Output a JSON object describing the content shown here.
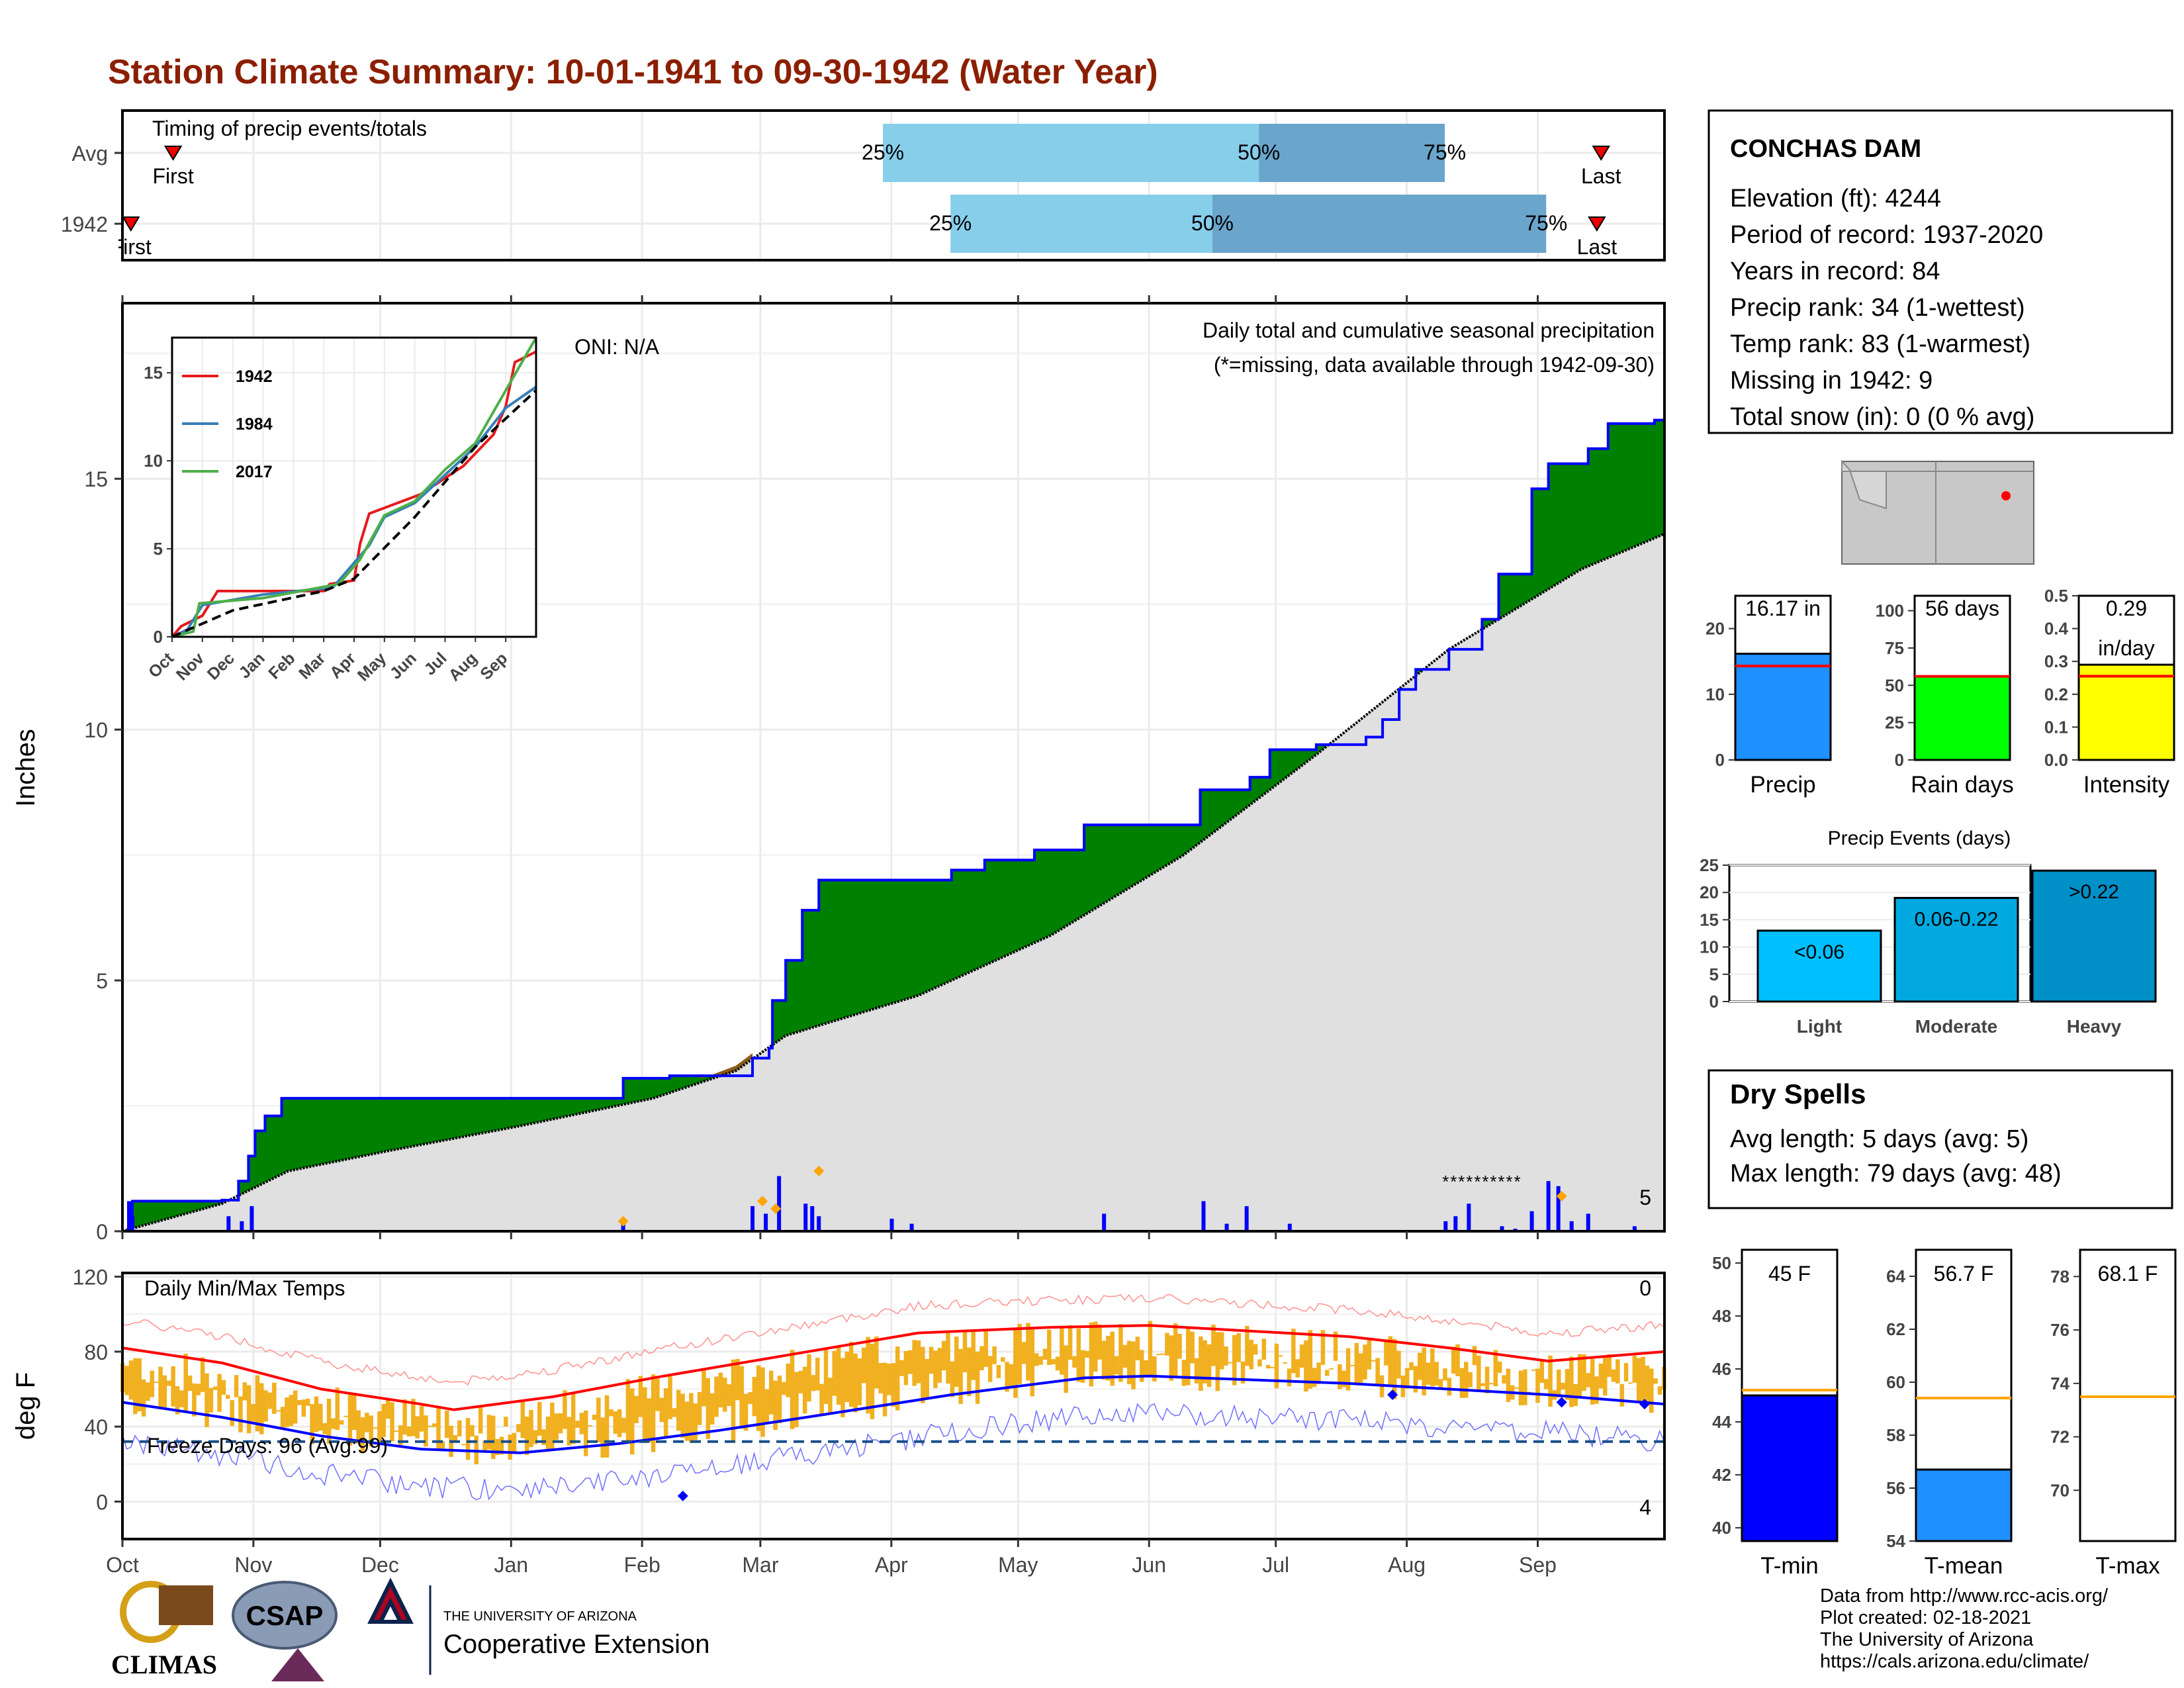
{
  "title": "Station Climate Summary: 10-01-1941 to 09-30-1942 (Water Year)",
  "colors": {
    "title": "#8b1f00",
    "precip_bar": "#0000ff",
    "above_avg_fill": "#008000",
    "below_avg_fill": "#8b5a14",
    "avg_fill": "#e0e0e0",
    "timing_light": "#87ceeb",
    "timing_dark": "#6aa5cc",
    "tmax_line": "#ff0000",
    "tmin_line": "#0000ff",
    "temp_bars": "#f0b020",
    "freeze_line": "#1a4f8a",
    "dry_spells": "#a52a2a"
  },
  "timing": {
    "title": "Timing of precip events/totals",
    "rows": [
      {
        "label": "Avg",
        "first": "First",
        "last": "Last",
        "p25": "25%",
        "p50": "50%",
        "p75": "75%",
        "first_day": 12,
        "last_day": 350,
        "p25_day": 180,
        "p50_day": 269,
        "p75_day": 313
      },
      {
        "label": "1942",
        "first": "First",
        "last": "Last",
        "p25": "25%",
        "p50": "50%",
        "p75": "75%",
        "first_day": 2,
        "last_day": 349,
        "p25_day": 196,
        "p50_day": 258,
        "p75_day": 337
      }
    ]
  },
  "station": {
    "name": "CONCHAS DAM",
    "lines": [
      "Elevation (ft): 4244",
      "Period of record: 1937-2020",
      "Years in record: 84",
      "Precip rank: 34 (1-wettest)",
      "Temp rank: 83 (1-warmest)",
      "Missing in 1942: 9",
      "Total snow (in): 0 (0 % avg)"
    ]
  },
  "main_chart": {
    "ylabel": "Inches",
    "oni": "ONI: N/A",
    "subtitle": "Daily total and cumulative seasonal precipitation",
    "missing_note": "(*=missing, data available through 1942-09-30)",
    "count_label": "5",
    "y_ticks": [
      "0",
      "5",
      "10",
      "15"
    ],
    "months": [
      "Oct",
      "Nov",
      "Dec",
      "Jan",
      "Feb",
      "Mar",
      "Apr",
      "May",
      "Jun",
      "Jul",
      "Aug",
      "Sep"
    ]
  },
  "inset": {
    "legend": [
      "1942",
      "1984",
      "2017"
    ],
    "y_ticks": [
      "0",
      "5",
      "10",
      "15"
    ],
    "months": [
      "Oct",
      "Nov",
      "Dec",
      "Jan",
      "Feb",
      "Mar",
      "Apr",
      "May",
      "Jun",
      "Jul",
      "Aug",
      "Sep"
    ]
  },
  "temp_chart": {
    "ylabel": "deg F",
    "title": "Daily Min/Max Temps",
    "freeze": "Freeze Days: 96 (Avg:99)",
    "top_count": "0",
    "bottom_count": "4",
    "y_ticks": [
      "0",
      "40",
      "80",
      "120"
    ]
  },
  "summary_bars": [
    {
      "label": "Precip",
      "value_text": "16.17 in",
      "value": 16.17,
      "avg": 14.3,
      "ymax": 25,
      "ticks": [
        "0",
        "10",
        "20"
      ],
      "color": "#1e90ff"
    },
    {
      "label": "Rain days",
      "value_text": "56 days",
      "value": 56,
      "avg": 56,
      "ymax": 110,
      "ticks": [
        "0",
        "25",
        "50",
        "75",
        "100"
      ],
      "color": "#00ff00"
    },
    {
      "label": "Intensity",
      "value_text": "0.29",
      "value_text2": "in/day",
      "value": 0.29,
      "avg": 0.255,
      "ymax": 0.5,
      "ticks": [
        "0.0",
        "0.1",
        "0.2",
        "0.3",
        "0.4",
        "0.5"
      ],
      "color": "#ffff00"
    }
  ],
  "precip_events": {
    "title": "Precip Events (days)",
    "ticks": [
      "0",
      "5",
      "10",
      "15",
      "20",
      "25"
    ],
    "bars": [
      {
        "label": "Light",
        "range": "<0.06",
        "value": 13,
        "color": "#00bfff"
      },
      {
        "label": "Moderate",
        "range": "0.06-0.22",
        "value": 19,
        "color": "#00a8e0"
      },
      {
        "label": "Heavy",
        "range": ">0.22",
        "value": 24,
        "color": "#0090c8"
      }
    ]
  },
  "dry_spells": {
    "title": "Dry Spells",
    "avg": "Avg length: 5 days (avg: 5)",
    "max": "Max length: 79 days (avg: 48)"
  },
  "temp_bars": [
    {
      "label": "T-min",
      "value_text": "45 F",
      "value": 45.0,
      "avg": 45.2,
      "ymin": 39.5,
      "ymax": 50.5,
      "ticks": [
        "40",
        "42",
        "44",
        "46",
        "48",
        "50"
      ],
      "color": "#0000ff"
    },
    {
      "label": "T-mean",
      "value_text": "56.7 F",
      "value": 56.7,
      "avg": 59.4,
      "ymin": 54,
      "ymax": 65,
      "ticks": [
        "54",
        "56",
        "58",
        "60",
        "62",
        "64"
      ],
      "color": "#1e90ff"
    },
    {
      "label": "T-max",
      "value_text": "68.1 F",
      "value": 68.1,
      "avg": 73.5,
      "ymin": 68.1,
      "ymax": 79,
      "ticks": [
        "70",
        "72",
        "74",
        "76",
        "78"
      ],
      "color": "#0000ff"
    }
  ],
  "credits": [
    "Data from http://www.rcc-acis.org/",
    "Plot created: 02-18-2021",
    "The University of Arizona",
    "https://cals.arizona.edu/climate/"
  ],
  "logos": {
    "climas": "CLIMAS",
    "csap": "CSAP",
    "ua_small": "THE UNIVERSITY OF ARIZONA",
    "ua_big": "Cooperative Extension"
  },
  "chart_data": [
    {
      "type": "area",
      "title": "Daily total and cumulative seasonal precipitation",
      "ylabel": "Inches",
      "ylim": [
        0,
        18.5
      ],
      "x_unit": "day of water year (0 = Oct 1)",
      "cumulative_1942": [
        [
          0,
          0
        ],
        [
          2,
          0.3
        ],
        [
          3,
          0.6
        ],
        [
          30,
          0.62
        ],
        [
          35,
          1.0
        ],
        [
          38,
          1.5
        ],
        [
          40,
          2.0
        ],
        [
          43,
          2.3
        ],
        [
          48,
          2.65
        ],
        [
          150,
          2.65
        ],
        [
          151,
          3.05
        ],
        [
          165,
          3.1
        ],
        [
          183,
          3.1
        ],
        [
          190,
          3.45
        ],
        [
          195,
          3.65
        ],
        [
          196,
          4.6
        ],
        [
          200,
          5.4
        ],
        [
          205,
          6.4
        ],
        [
          210,
          7.0
        ],
        [
          250,
          7.2
        ],
        [
          260,
          7.4
        ],
        [
          275,
          7.6
        ],
        [
          290,
          8.1
        ],
        [
          320,
          8.1
        ],
        [
          325,
          8.8
        ],
        [
          340,
          9.05
        ],
        [
          346,
          9.6
        ],
        [
          360,
          9.7
        ],
        [
          375,
          9.85
        ],
        [
          380,
          10.2
        ],
        [
          385,
          10.8
        ],
        [
          390,
          11.2
        ],
        [
          400,
          11.6
        ],
        [
          410,
          12.2
        ],
        [
          415,
          13.1
        ],
        [
          425,
          14.8
        ],
        [
          430,
          15.3
        ],
        [
          442,
          15.6
        ],
        [
          448,
          16.1
        ],
        [
          462,
          16.17
        ],
        [
          465,
          16.17
        ]
      ],
      "cumulative_avg": [
        [
          0,
          0
        ],
        [
          30,
          0.55
        ],
        [
          50,
          1.2
        ],
        [
          80,
          1.6
        ],
        [
          120,
          2.1
        ],
        [
          160,
          2.65
        ],
        [
          185,
          3.2
        ],
        [
          200,
          3.9
        ],
        [
          240,
          4.7
        ],
        [
          280,
          5.9
        ],
        [
          320,
          7.5
        ],
        [
          360,
          9.5
        ],
        [
          400,
          11.6
        ],
        [
          440,
          13.2
        ],
        [
          465,
          13.9
        ]
      ],
      "daily_bars": [
        [
          2,
          0.6
        ],
        [
          3,
          0.3
        ],
        [
          32,
          0.3
        ],
        [
          36,
          0.2
        ],
        [
          39,
          0.5
        ],
        [
          151,
          0.15
        ],
        [
          190,
          0.5
        ],
        [
          194,
          0.35
        ],
        [
          198,
          1.1
        ],
        [
          206,
          0.55
        ],
        [
          208,
          0.5
        ],
        [
          210,
          0.3
        ],
        [
          232,
          0.25
        ],
        [
          238,
          0.15
        ],
        [
          296,
          0.35
        ],
        [
          326,
          0.6
        ],
        [
          333,
          0.15
        ],
        [
          339,
          0.5
        ],
        [
          352,
          0.15
        ],
        [
          399,
          0.2
        ],
        [
          402,
          0.3
        ],
        [
          406,
          0.55
        ],
        [
          416,
          0.1
        ],
        [
          420,
          0.05
        ],
        [
          425,
          0.4
        ],
        [
          430,
          1.0
        ],
        [
          433,
          0.9
        ],
        [
          437,
          0.2
        ],
        [
          442,
          0.35
        ],
        [
          456,
          0.1
        ]
      ],
      "missing_days": [
        399,
        421
      ],
      "months": [
        "Oct",
        "Nov",
        "Dec",
        "Jan",
        "Feb",
        "Mar",
        "Apr",
        "May",
        "Jun",
        "Jul",
        "Aug",
        "Sep"
      ]
    },
    {
      "type": "line",
      "title": "",
      "legend": [
        "1942",
        "1984",
        "2017"
      ],
      "ylim": [
        0,
        17
      ],
      "series": [
        {
          "name": "1942",
          "color": "#e41a1c",
          "points": [
            [
              0,
              0
            ],
            [
              0.3,
              0.6
            ],
            [
              1,
              1.2
            ],
            [
              1.5,
              2.6
            ],
            [
              5,
              2.6
            ],
            [
              5.2,
              3.0
            ],
            [
              6,
              3.2
            ],
            [
              6.2,
              5.3
            ],
            [
              6.5,
              7.0
            ],
            [
              8.2,
              8.1
            ],
            [
              9.6,
              9.7
            ],
            [
              10.6,
              11.5
            ],
            [
              11,
              13.1
            ],
            [
              11.3,
              15.6
            ],
            [
              12,
              16.2
            ]
          ]
        },
        {
          "name": "1984",
          "color": "#377eb8",
          "points": [
            [
              0,
              0
            ],
            [
              0.5,
              0.4
            ],
            [
              1,
              1.8
            ],
            [
              3,
              2.4
            ],
            [
              5.3,
              2.8
            ],
            [
              6.5,
              5.2
            ],
            [
              7,
              6.8
            ],
            [
              8,
              7.6
            ],
            [
              9,
              9.2
            ],
            [
              10,
              10.8
            ],
            [
              11,
              13.0
            ],
            [
              12,
              14.2
            ]
          ]
        },
        {
          "name": "2017",
          "color": "#4daf4a",
          "points": [
            [
              0,
              0
            ],
            [
              0.7,
              0.3
            ],
            [
              0.9,
              1.9
            ],
            [
              3,
              2.2
            ],
            [
              5.5,
              3.0
            ],
            [
              6.2,
              4.4
            ],
            [
              7,
              6.9
            ],
            [
              8,
              7.7
            ],
            [
              9,
              9.5
            ],
            [
              10,
              11.0
            ],
            [
              11,
              14.0
            ],
            [
              12,
              17.0
            ]
          ]
        },
        {
          "name": "",
          "color": "#000000",
          "points": [
            [
              0,
              0
            ],
            [
              2,
              1.5
            ],
            [
              5,
              2.6
            ],
            [
              6,
              3.3
            ],
            [
              8,
              6.8
            ],
            [
              10,
              10.8
            ],
            [
              12,
              14.0
            ]
          ]
        }
      ]
    },
    {
      "type": "line",
      "title": "Daily Min/Max Temps",
      "ylabel": "deg F",
      "ylim": [
        -20,
        122
      ],
      "series": [
        {
          "name": "",
          "color": "#ff0000",
          "points": [
            [
              0,
              82
            ],
            [
              30,
              74
            ],
            [
              60,
              60
            ],
            [
              90,
              52
            ],
            [
              100,
              49
            ],
            [
              130,
              56
            ],
            [
              160,
              66
            ],
            [
              200,
              78
            ],
            [
              240,
              90
            ],
            [
              280,
              93
            ],
            [
              310,
              94
            ],
            [
              340,
              91
            ],
            [
              370,
              88
            ],
            [
              400,
              82
            ],
            [
              430,
              75
            ],
            [
              465,
              80
            ]
          ]
        },
        {
          "name": "",
          "color": "#0000ff",
          "points": [
            [
              0,
              53
            ],
            [
              30,
              45
            ],
            [
              60,
              35
            ],
            [
              90,
              28
            ],
            [
              120,
              26
            ],
            [
              150,
              31
            ],
            [
              180,
              38
            ],
            [
              210,
              46
            ],
            [
              250,
              57
            ],
            [
              290,
              66
            ],
            [
              310,
              67
            ],
            [
              340,
              65
            ],
            [
              370,
              63
            ],
            [
              400,
              60
            ],
            [
              430,
              57
            ],
            [
              465,
              52
            ]
          ]
        }
      ],
      "freeze_line": 32
    },
    {
      "type": "bar",
      "title": "",
      "categories": [
        "Precip",
        "Rain days",
        "Intensity"
      ],
      "values": [
        16.17,
        56,
        0.29
      ]
    },
    {
      "type": "bar",
      "title": "Precip Events (days)",
      "categories": [
        "Light",
        "Moderate",
        "Heavy"
      ],
      "values": [
        13,
        19,
        24
      ],
      "ylim": [
        0,
        25
      ]
    },
    {
      "type": "bar",
      "title": "",
      "categories": [
        "T-min",
        "T-mean",
        "T-max"
      ],
      "values": [
        45,
        56.7,
        68.1
      ]
    }
  ]
}
